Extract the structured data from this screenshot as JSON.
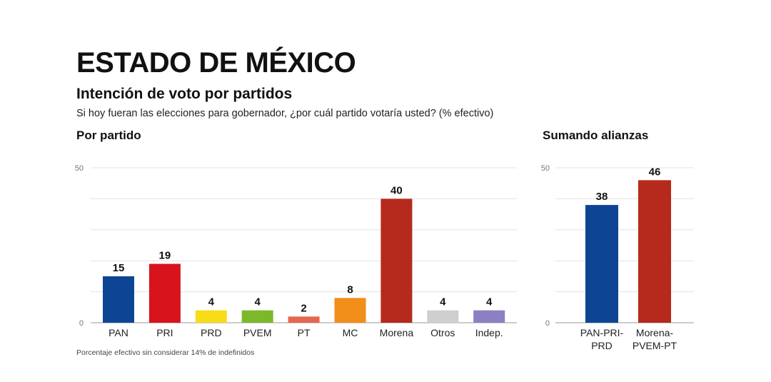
{
  "header": {
    "title": "ESTADO DE MÉXICO",
    "subtitle": "Intención de voto por partidos",
    "question": "Si hoy fueran las elecciones para gobernador, ¿por cuál partido votaría usted? (% efectivo)"
  },
  "footnote": "Porcentaje efectivo sin considerar 14% de indefinidos",
  "chart_data": [
    {
      "type": "bar",
      "title": "Por partido",
      "categories": [
        "PAN",
        "PRI",
        "PRD",
        "PVEM",
        "PT",
        "MC",
        "Morena",
        "Otros",
        "Indep."
      ],
      "values": [
        15,
        19,
        4,
        4,
        2,
        8,
        40,
        4,
        4
      ],
      "colors": [
        "#0e4494",
        "#d7141b",
        "#f7dc16",
        "#7cb82a",
        "#e5674f",
        "#f28e1a",
        "#b52a1c",
        "#cfcfcf",
        "#8d7fc4"
      ],
      "ylim": [
        0,
        50
      ],
      "yticks_labeled": [
        0,
        50
      ],
      "grid": true
    },
    {
      "type": "bar",
      "title": "Sumando alianzas",
      "categories": [
        [
          "PAN-PRI-",
          "PRD"
        ],
        [
          "Morena-",
          "PVEM-PT"
        ]
      ],
      "values": [
        38,
        46
      ],
      "colors": [
        "#0e4494",
        "#b52a1c"
      ],
      "ylim": [
        0,
        50
      ],
      "yticks_labeled": [
        0,
        50
      ],
      "grid": true
    }
  ]
}
